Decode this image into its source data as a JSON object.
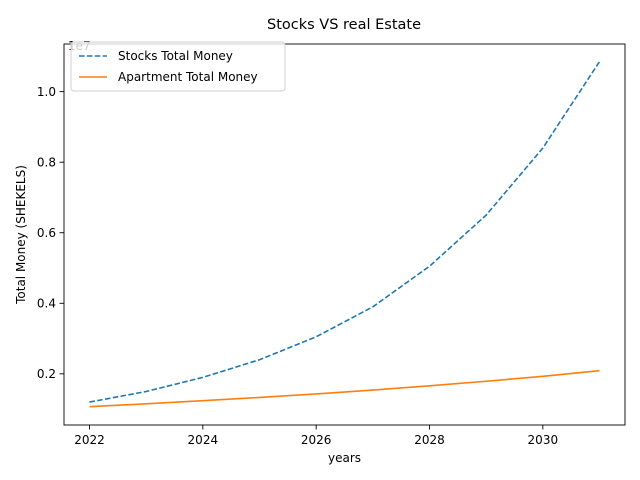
{
  "chart_data": {
    "type": "line",
    "title": "Stocks VS real Estate",
    "xlabel": "years",
    "ylabel": "Total Money (SHEKELS)",
    "y_offset_label": "1e7",
    "x": [
      2022,
      2023,
      2024,
      2025,
      2026,
      2027,
      2028,
      2029,
      2030,
      2031
    ],
    "x_ticks": [
      2022,
      2024,
      2026,
      2028,
      2030
    ],
    "x_tick_labels": [
      "2022",
      "2024",
      "2026",
      "2028",
      "2030"
    ],
    "y_ticks": [
      2000000,
      4000000,
      6000000,
      8000000,
      10000000
    ],
    "y_tick_labels": [
      "0.2",
      "0.4",
      "0.6",
      "0.8",
      "1.0"
    ],
    "xlim": [
      2021.55,
      2031.45
    ],
    "ylim": [
      550000,
      11350000
    ],
    "grid": false,
    "legend_position": "upper-left",
    "series": [
      {
        "name": "Stocks Total Money",
        "color": "#1f77b4",
        "style": "dashed",
        "values": [
          1200000,
          1500000,
          1900000,
          2400000,
          3050000,
          3900000,
          5050000,
          6500000,
          8400000,
          10850000
        ]
      },
      {
        "name": "Apartment Total Money",
        "color": "#ff7f0e",
        "style": "solid",
        "values": [
          1070000,
          1150000,
          1240000,
          1330000,
          1430000,
          1540000,
          1660000,
          1790000,
          1930000,
          2090000
        ]
      }
    ]
  }
}
